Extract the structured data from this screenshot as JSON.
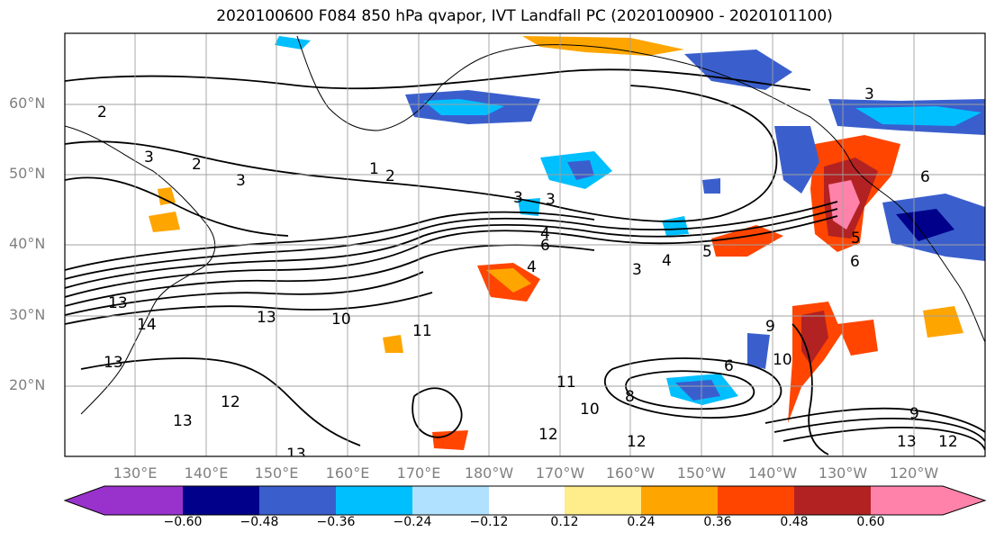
{
  "title": "2020100600 F084 850 hPa qvapor, IVT Landfall PC (2020100900 - 2020101100)",
  "lat_labels": [
    "60°N",
    "50°N",
    "40°N",
    "30°N",
    "20°N"
  ],
  "lon_labels": [
    "130°E",
    "140°E",
    "150°E",
    "160°E",
    "170°E",
    "180°W",
    "170°W",
    "160°W",
    "150°W",
    "140°W",
    "130°W",
    "120°W"
  ],
  "colorbar": {
    "colors": [
      "#9932cc",
      "#00008b",
      "#3a5fcd",
      "#00bfff",
      "#b0e2ff",
      "#ffffff",
      "#ffec8b",
      "#ffa500",
      "#ff4500",
      "#b22222",
      "#ff82ab"
    ],
    "extend": "both",
    "tick_labels": [
      "−0.60",
      "−0.48",
      "−0.36",
      "−0.24",
      "−0.12",
      "0.12",
      "0.24",
      "0.36",
      "0.48",
      "0.60"
    ]
  },
  "contour_labels": [
    "2",
    "3",
    "2",
    "1",
    "2",
    "3",
    "3",
    "3",
    "4",
    "3",
    "4",
    "5",
    "6",
    "4",
    "5",
    "6",
    "6",
    "13",
    "14",
    "13",
    "13",
    "11",
    "10",
    "13",
    "12",
    "12",
    "11",
    "10",
    "8",
    "9",
    "10",
    "13",
    "12",
    "13",
    "9",
    "12",
    "6",
    "3"
  ],
  "grid": true,
  "projection": "PlateCarree"
}
